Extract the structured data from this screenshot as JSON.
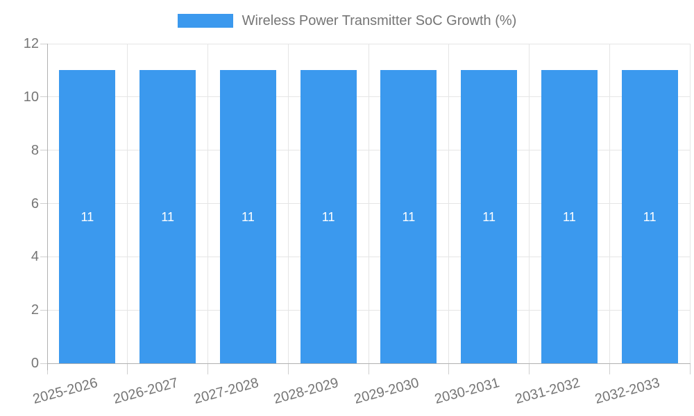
{
  "chart_data": {
    "type": "bar",
    "title": "Wireless Power Transmitter SoC Growth (%)",
    "legend_entries": [
      {
        "label": "Wireless Power Transmitter SoC Growth (%)",
        "color": "#3B99EE"
      }
    ],
    "legend_position": "top",
    "categories": [
      "2025-2026",
      "2026-2027",
      "2027-2028",
      "2028-2029",
      "2029-2030",
      "2030-2031",
      "2031-2032",
      "2032-2033"
    ],
    "series": [
      {
        "name": "Wireless Power Transmitter SoC Growth (%)",
        "values": [
          11,
          11,
          11,
          11,
          11,
          11,
          11,
          11
        ]
      }
    ],
    "bar_value_labels": [
      "11",
      "11",
      "11",
      "11",
      "11",
      "11",
      "11",
      "11"
    ],
    "xlabel": "",
    "ylabel": "",
    "ylim": [
      0,
      12
    ],
    "yticks": [
      0,
      2,
      4,
      6,
      8,
      10,
      12
    ],
    "grid": true,
    "xtick_rotation_deg": -15,
    "colors": {
      "bar": "#3B99EE",
      "bar_label": "#FFFFFF",
      "axis_text": "#757575",
      "gridline": "#E5E5E5",
      "axis_line": "#B0B0B0",
      "tick_mark": "#CFCFCF",
      "background": "#FFFFFF"
    }
  }
}
